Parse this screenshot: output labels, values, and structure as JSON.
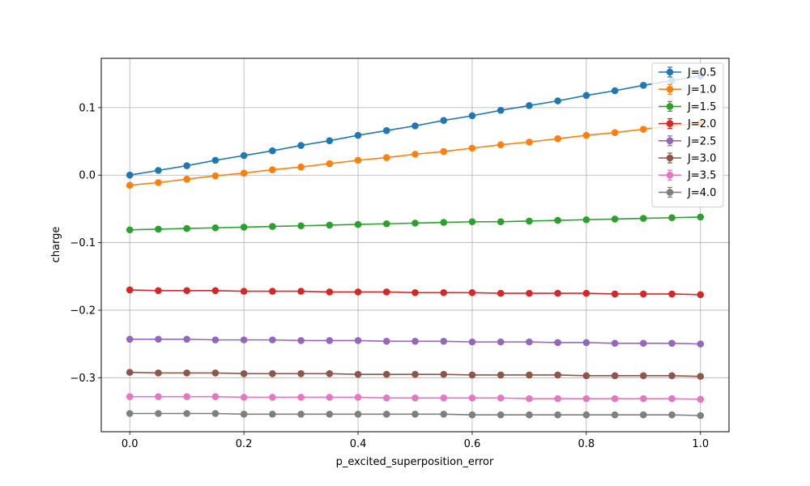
{
  "chart_data": {
    "type": "line",
    "title": "",
    "xlabel": "p_excited_superposition_error",
    "ylabel": "charge",
    "xlim": [
      -0.05,
      1.05
    ],
    "ylim": [
      -0.38,
      0.173
    ],
    "xticks": [
      0.0,
      0.2,
      0.4,
      0.6,
      0.8,
      1.0
    ],
    "xtick_labels": [
      "0.0",
      "0.2",
      "0.4",
      "0.6",
      "0.8",
      "1.0"
    ],
    "yticks": [
      0.1,
      0.0,
      -0.1,
      -0.2,
      -0.3
    ],
    "ytick_labels": [
      "0.1",
      "0.0",
      "−0.1",
      "−0.2",
      "−0.3"
    ],
    "grid": true,
    "legend_position": "top-right",
    "x": [
      0.0,
      0.05,
      0.1,
      0.15,
      0.2,
      0.25,
      0.3,
      0.35,
      0.4,
      0.45,
      0.5,
      0.55,
      0.6,
      0.65,
      0.7,
      0.75,
      0.8,
      0.85,
      0.9,
      0.95,
      1.0
    ],
    "series": [
      {
        "name": "J=0.5",
        "color": "#1f77b4",
        "values": [
          0.0,
          0.007,
          0.014,
          0.022,
          0.029,
          0.036,
          0.044,
          0.051,
          0.059,
          0.066,
          0.073,
          0.081,
          0.088,
          0.096,
          0.103,
          0.11,
          0.118,
          0.125,
          0.133,
          0.14,
          0.147
        ]
      },
      {
        "name": "J=1.0",
        "color": "#ff7f0e",
        "values": [
          -0.015,
          -0.011,
          -0.006,
          -0.001,
          0.003,
          0.008,
          0.012,
          0.017,
          0.022,
          0.026,
          0.031,
          0.035,
          0.04,
          0.045,
          0.049,
          0.054,
          0.059,
          0.063,
          0.068,
          0.073,
          0.077
        ]
      },
      {
        "name": "J=1.5",
        "color": "#2ca02c",
        "values": [
          -0.081,
          -0.08,
          -0.079,
          -0.078,
          -0.077,
          -0.076,
          -0.075,
          -0.074,
          -0.073,
          -0.072,
          -0.071,
          -0.07,
          -0.069,
          -0.069,
          -0.068,
          -0.067,
          -0.066,
          -0.065,
          -0.064,
          -0.063,
          -0.062
        ]
      },
      {
        "name": "J=2.0",
        "color": "#d62728",
        "values": [
          -0.17,
          -0.171,
          -0.171,
          -0.171,
          -0.172,
          -0.172,
          -0.172,
          -0.173,
          -0.173,
          -0.173,
          -0.174,
          -0.174,
          -0.174,
          -0.175,
          -0.175,
          -0.175,
          -0.175,
          -0.176,
          -0.176,
          -0.176,
          -0.177
        ]
      },
      {
        "name": "J=2.5",
        "color": "#9467bd",
        "values": [
          -0.243,
          -0.243,
          -0.243,
          -0.244,
          -0.244,
          -0.244,
          -0.245,
          -0.245,
          -0.245,
          -0.246,
          -0.246,
          -0.246,
          -0.247,
          -0.247,
          -0.247,
          -0.248,
          -0.248,
          -0.249,
          -0.249,
          -0.249,
          -0.25
        ]
      },
      {
        "name": "J=3.0",
        "color": "#8c564b",
        "values": [
          -0.292,
          -0.293,
          -0.293,
          -0.293,
          -0.294,
          -0.294,
          -0.294,
          -0.294,
          -0.295,
          -0.295,
          -0.295,
          -0.295,
          -0.296,
          -0.296,
          -0.296,
          -0.296,
          -0.297,
          -0.297,
          -0.297,
          -0.297,
          -0.298
        ]
      },
      {
        "name": "J=3.5",
        "color": "#e377c2",
        "values": [
          -0.328,
          -0.328,
          -0.328,
          -0.328,
          -0.329,
          -0.329,
          -0.329,
          -0.329,
          -0.329,
          -0.33,
          -0.33,
          -0.33,
          -0.33,
          -0.33,
          -0.331,
          -0.331,
          -0.331,
          -0.331,
          -0.331,
          -0.331,
          -0.332
        ]
      },
      {
        "name": "J=4.0",
        "color": "#7f7f7f",
        "values": [
          -0.353,
          -0.353,
          -0.353,
          -0.353,
          -0.354,
          -0.354,
          -0.354,
          -0.354,
          -0.354,
          -0.354,
          -0.354,
          -0.354,
          -0.355,
          -0.355,
          -0.355,
          -0.355,
          -0.355,
          -0.355,
          -0.355,
          -0.355,
          -0.356
        ]
      }
    ]
  }
}
